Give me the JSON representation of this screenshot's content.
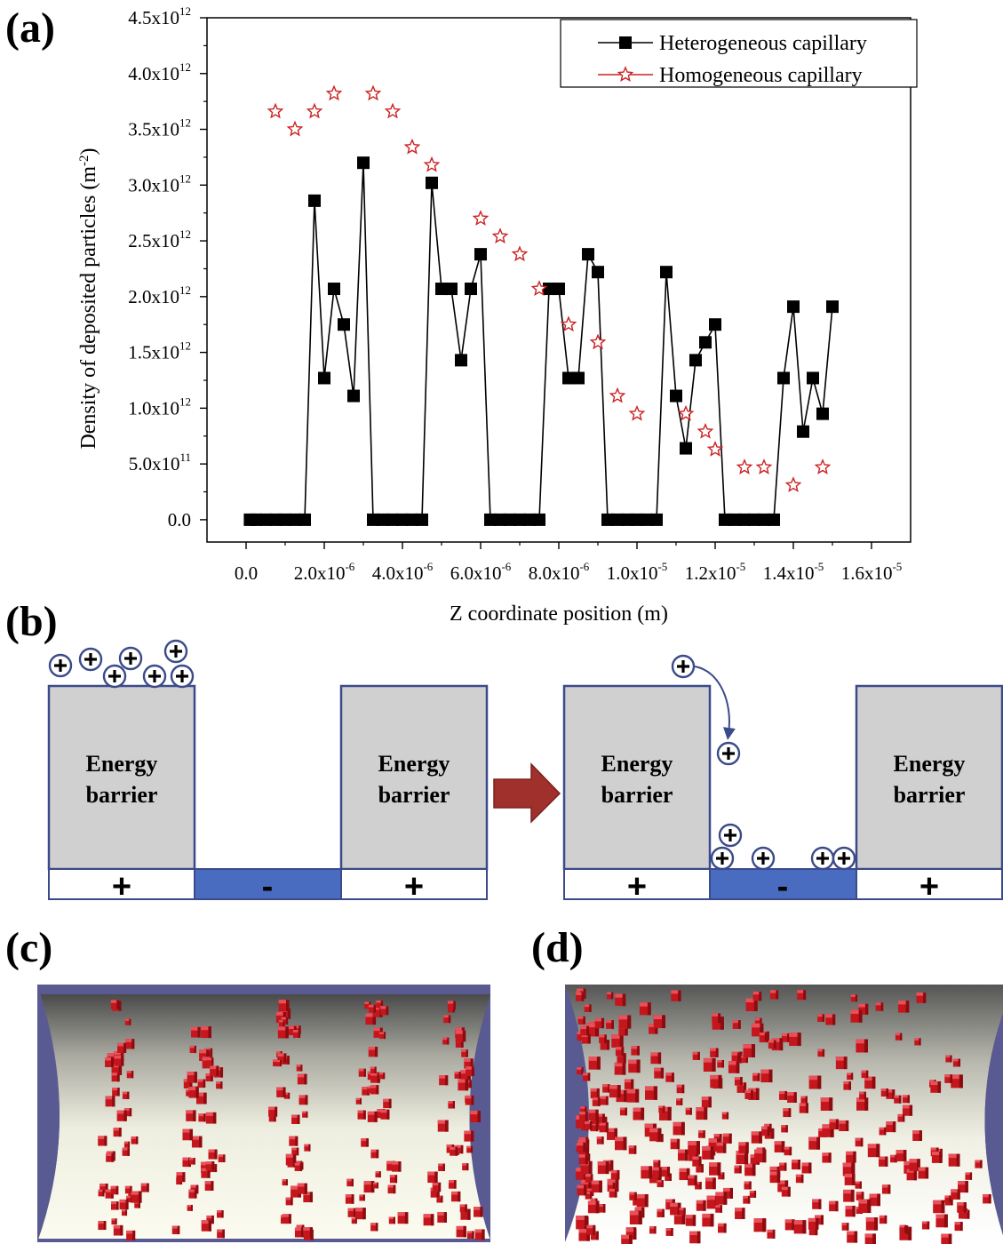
{
  "labels": {
    "a": "(a)",
    "b": "(b)",
    "c": "(c)",
    "d": "(d)"
  },
  "chart_data": {
    "type": "line",
    "title": "",
    "xlabel": "Z coordinate position (m)",
    "ylabel": "Density of deposited particles (m⁻²)",
    "xlim": [
      -1e-06,
      1.7e-05
    ],
    "ylim": [
      -200000000000.0,
      4500000000000.0
    ],
    "xticks": [
      {
        "v": 0,
        "base": "0.0",
        "exp": ""
      },
      {
        "v": 2e-06,
        "base": "2.0x10",
        "exp": "-6"
      },
      {
        "v": 4e-06,
        "base": "4.0x10",
        "exp": "-6"
      },
      {
        "v": 6e-06,
        "base": "6.0x10",
        "exp": "-6"
      },
      {
        "v": 8e-06,
        "base": "8.0x10",
        "exp": "-6"
      },
      {
        "v": 1e-05,
        "base": "1.0x10",
        "exp": "-5"
      },
      {
        "v": 1.2e-05,
        "base": "1.2x10",
        "exp": "-5"
      },
      {
        "v": 1.4e-05,
        "base": "1.4x10",
        "exp": "-5"
      },
      {
        "v": 1.6e-05,
        "base": "1.6x10",
        "exp": "-5"
      }
    ],
    "yticks": [
      {
        "v": 0,
        "base": "0.0",
        "exp": ""
      },
      {
        "v": 500000000000.0,
        "base": "5.0x10",
        "exp": "11"
      },
      {
        "v": 1000000000000.0,
        "base": "1.0x10",
        "exp": "12"
      },
      {
        "v": 1500000000000.0,
        "base": "1.5x10",
        "exp": "12"
      },
      {
        "v": 2000000000000.0,
        "base": "2.0x10",
        "exp": "12"
      },
      {
        "v": 2500000000000.0,
        "base": "2.5x10",
        "exp": "12"
      },
      {
        "v": 3000000000000.0,
        "base": "3.0x10",
        "exp": "12"
      },
      {
        "v": 3500000000000.0,
        "base": "3.5x10",
        "exp": "12"
      },
      {
        "v": 4000000000000.0,
        "base": "4.0x10",
        "exp": "12"
      },
      {
        "v": 4500000000000.0,
        "base": "4.5x10",
        "exp": "12"
      }
    ],
    "legend_position": "top-right",
    "series": [
      {
        "name": "Heterogeneous capillary",
        "marker": "square",
        "color": "#000000",
        "x": [
          1e-07,
          2.5e-07,
          5e-07,
          7.5e-07,
          1e-06,
          1.25e-06,
          1.5e-06,
          1.75e-06,
          2e-06,
          2.25e-06,
          2.5e-06,
          2.75e-06,
          3e-06,
          3.25e-06,
          3.5e-06,
          3.75e-06,
          4e-06,
          4.25e-06,
          4.5e-06,
          4.75e-06,
          5e-06,
          5.25e-06,
          5.5e-06,
          5.75e-06,
          6e-06,
          6.25e-06,
          6.5e-06,
          6.75e-06,
          7e-06,
          7.25e-06,
          7.5e-06,
          7.75e-06,
          8e-06,
          8.25e-06,
          8.5e-06,
          8.75e-06,
          9e-06,
          9.25e-06,
          9.5e-06,
          9.75e-06,
          1e-05,
          1.025e-05,
          1.05e-05,
          1.075e-05,
          1.1e-05,
          1.125e-05,
          1.15e-05,
          1.175e-05,
          1.2e-05,
          1.225e-05,
          1.25e-05,
          1.275e-05,
          1.3e-05,
          1.325e-05,
          1.35e-05,
          1.375e-05,
          1.4e-05,
          1.425e-05,
          1.45e-05,
          1.475e-05,
          1.5e-05
        ],
        "y": [
          0,
          0,
          0,
          0,
          0,
          0,
          0,
          2860000000000.0,
          1270000000000.0,
          2070000000000.0,
          1750000000000.0,
          1110000000000.0,
          3200000000000.0,
          0,
          0,
          0,
          0,
          0,
          0,
          3020000000000.0,
          2070000000000.0,
          2070000000000.0,
          1430000000000.0,
          2070000000000.0,
          2380000000000.0,
          0,
          0,
          0,
          0,
          0,
          0,
          2070000000000.0,
          2070000000000.0,
          1270000000000.0,
          1270000000000.0,
          2380000000000.0,
          2220000000000.0,
          0,
          0,
          0,
          0,
          0,
          0,
          2220000000000.0,
          1110000000000.0,
          640000000000.0,
          1430000000000.0,
          1590000000000.0,
          1750000000000.0,
          0,
          0,
          0,
          0,
          0,
          0,
          1270000000000.0,
          1910000000000.0,
          790000000000.0,
          1270000000000.0,
          950000000000.0,
          1910000000000.0
        ]
      },
      {
        "name": "Homogeneous capillary",
        "marker": "star",
        "color": "#cc2222",
        "x": [
          7.5e-07,
          1.25e-06,
          1.75e-06,
          2.25e-06,
          3.25e-06,
          3.75e-06,
          4.25e-06,
          4.75e-06,
          6e-06,
          6.5e-06,
          7e-06,
          7.5e-06,
          8.25e-06,
          9e-06,
          9.5e-06,
          1e-05,
          1.125e-05,
          1.175e-05,
          1.2e-05,
          1.275e-05,
          1.325e-05,
          1.4e-05,
          1.475e-05
        ],
        "y": [
          3660000000000.0,
          3500000000000.0,
          3660000000000.0,
          3820000000000.0,
          3820000000000.0,
          3660000000000.0,
          3340000000000.0,
          3180000000000.0,
          2700000000000.0,
          2540000000000.0,
          2380000000000.0,
          2070000000000.0,
          1750000000000.0,
          1590000000000.0,
          1110000000000.0,
          950000000000.0,
          950000000000.0,
          790000000000.0,
          630000000000.0,
          470000000000.0,
          470000000000.0,
          310000000000.0,
          470000000000.0
        ]
      }
    ]
  },
  "diagram_b": {
    "barrier_line1": "Energy",
    "barrier_line2": "barrier",
    "plus": "+",
    "minus": "-",
    "colors": {
      "barrier_fill": "#d0d0d0",
      "border": "#3b4a8a",
      "negative_fill": "#4a6cc0",
      "arrow": "#a0302c",
      "particle_border": "#3b4a8a"
    }
  },
  "panel_c": {
    "colors": {
      "frame": "#5a5a92",
      "particle": "#c4161c"
    }
  },
  "panel_d": {
    "colors": {
      "frame": "#5a5a92",
      "particle": "#c4161c"
    }
  }
}
